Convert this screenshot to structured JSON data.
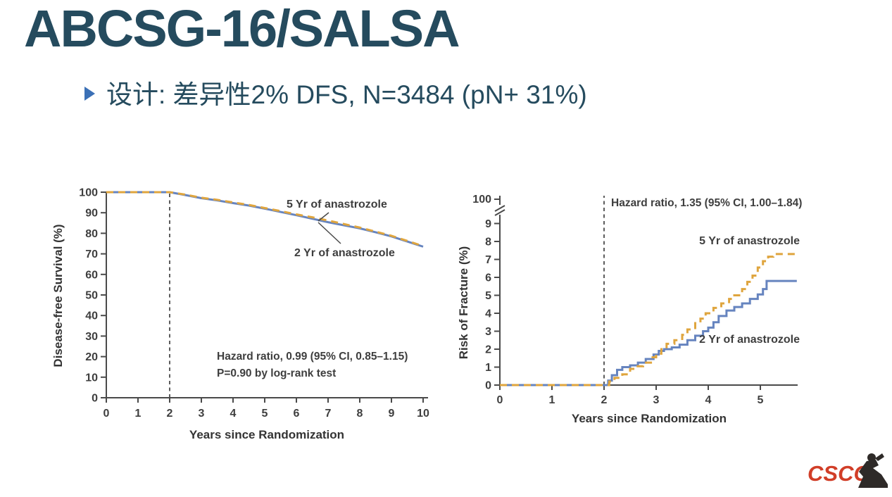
{
  "slide": {
    "title": "ABCSG-16/SALSA",
    "bullet": "设计: 差异性2% DFS, N=3484 (pN+ 31%)",
    "logo_text": "CSCO",
    "logo_reg": "®",
    "colors": {
      "title": "#254b5e",
      "bullet_marker": "#3b70b6",
      "logo_red": "#d13e28",
      "anastrozole_5yr": "#dfa53e",
      "anastrozole_2yr": "#6684bf"
    }
  },
  "chart_data": [
    {
      "type": "line",
      "title": "",
      "xlabel": "Years since Randomization",
      "ylabel": "Disease-free Survival (%)",
      "xlim": [
        0,
        10.15
      ],
      "ylim": [
        0,
        100
      ],
      "xticks": [
        0,
        1,
        2,
        3,
        4,
        5,
        6,
        7,
        8,
        9,
        10
      ],
      "yticks": [
        0,
        10,
        20,
        30,
        40,
        50,
        60,
        70,
        80,
        90,
        100
      ],
      "grid": false,
      "legend_position": "inline-labels",
      "vline_x": 2,
      "step": false,
      "annotation": [
        "Hazard ratio, 0.99 (95% CI, 0.85–1.15)",
        "P=0.90 by log-rank test"
      ],
      "series": [
        {
          "name": "5 Yr of anastrozole",
          "color": "#dfa53e",
          "dash": true,
          "points": [
            [
              0,
              100
            ],
            [
              2,
              100
            ],
            [
              2.5,
              98.8
            ],
            [
              3,
              97.3
            ],
            [
              3.5,
              96.3
            ],
            [
              4,
              95.0
            ],
            [
              4.5,
              93.8
            ],
            [
              5,
              92.3
            ],
            [
              5.5,
              90.8
            ],
            [
              6,
              89.2
            ],
            [
              6.5,
              87.8
            ],
            [
              7,
              86.2
            ],
            [
              7.5,
              84.5
            ],
            [
              8,
              82.8
            ],
            [
              8.5,
              80.8
            ],
            [
              9,
              78.8
            ],
            [
              9.5,
              76.3
            ],
            [
              10,
              73.8
            ]
          ]
        },
        {
          "name": "2 Yr of anastrozole",
          "color": "#6684bf",
          "dash": false,
          "points": [
            [
              0,
              100
            ],
            [
              2,
              100
            ],
            [
              2.5,
              98.6
            ],
            [
              3,
              97.1
            ],
            [
              3.5,
              96.0
            ],
            [
              4,
              94.7
            ],
            [
              4.5,
              93.5
            ],
            [
              5,
              92.0
            ],
            [
              5.5,
              90.4
            ],
            [
              6,
              88.8
            ],
            [
              6.5,
              87.1
            ],
            [
              7,
              85.4
            ],
            [
              7.5,
              83.9
            ],
            [
              8,
              82.4
            ],
            [
              8.5,
              80.5
            ],
            [
              9,
              78.5
            ],
            [
              9.5,
              76.0
            ],
            [
              10,
              73.5
            ]
          ]
        }
      ]
    },
    {
      "type": "line",
      "title": "",
      "xlabel": "Years since Randomization",
      "ylabel": "Risk of Fracture (%)",
      "xlim": [
        0,
        5.72
      ],
      "ylim": [
        0,
        9
      ],
      "xticks": [
        0,
        1,
        2,
        3,
        4,
        5
      ],
      "yticks": [
        0,
        1,
        2,
        3,
        4,
        5,
        6,
        7,
        8,
        9
      ],
      "y_axis_break": true,
      "ytop_label": "100",
      "grid": false,
      "legend_position": "inline-labels",
      "vline_x": 2,
      "step": true,
      "annotation": [
        "Hazard ratio, 1.35 (95% CI, 1.00–1.84)"
      ],
      "series": [
        {
          "name": "5 Yr of anastrozole",
          "color": "#dfa53e",
          "dash": true,
          "points": [
            [
              0,
              0
            ],
            [
              2,
              0
            ],
            [
              2.1,
              0.2
            ],
            [
              2.2,
              0.4
            ],
            [
              2.35,
              0.6
            ],
            [
              2.5,
              0.9
            ],
            [
              2.6,
              1.05
            ],
            [
              2.75,
              1.25
            ],
            [
              2.9,
              1.55
            ],
            [
              3.0,
              1.75
            ],
            [
              3.1,
              2.0
            ],
            [
              3.2,
              2.3
            ],
            [
              3.35,
              2.5
            ],
            [
              3.5,
              2.8
            ],
            [
              3.6,
              3.1
            ],
            [
              3.75,
              3.45
            ],
            [
              3.85,
              3.7
            ],
            [
              3.95,
              4.0
            ],
            [
              4.1,
              4.3
            ],
            [
              4.25,
              4.55
            ],
            [
              4.4,
              4.8
            ],
            [
              4.5,
              5.0
            ],
            [
              4.65,
              5.35
            ],
            [
              4.75,
              5.75
            ],
            [
              4.85,
              6.1
            ],
            [
              4.95,
              6.55
            ],
            [
              5.05,
              6.9
            ],
            [
              5.15,
              7.15
            ],
            [
              5.25,
              7.3
            ],
            [
              5.7,
              7.3
            ]
          ]
        },
        {
          "name": "2 Yr of anastrozole",
          "color": "#6684bf",
          "dash": false,
          "points": [
            [
              0,
              0
            ],
            [
              2,
              0
            ],
            [
              2.08,
              0.25
            ],
            [
              2.15,
              0.55
            ],
            [
              2.25,
              0.85
            ],
            [
              2.35,
              1.0
            ],
            [
              2.5,
              1.1
            ],
            [
              2.65,
              1.25
            ],
            [
              2.8,
              1.45
            ],
            [
              2.95,
              1.7
            ],
            [
              3.05,
              1.9
            ],
            [
              3.15,
              2.0
            ],
            [
              3.3,
              2.1
            ],
            [
              3.45,
              2.25
            ],
            [
              3.6,
              2.5
            ],
            [
              3.75,
              2.75
            ],
            [
              3.9,
              3.0
            ],
            [
              4.0,
              3.2
            ],
            [
              4.1,
              3.5
            ],
            [
              4.2,
              3.85
            ],
            [
              4.35,
              4.15
            ],
            [
              4.5,
              4.35
            ],
            [
              4.65,
              4.55
            ],
            [
              4.8,
              4.8
            ],
            [
              4.95,
              5.05
            ],
            [
              5.05,
              5.35
            ],
            [
              5.12,
              5.8
            ],
            [
              5.7,
              5.8
            ]
          ]
        }
      ]
    }
  ]
}
